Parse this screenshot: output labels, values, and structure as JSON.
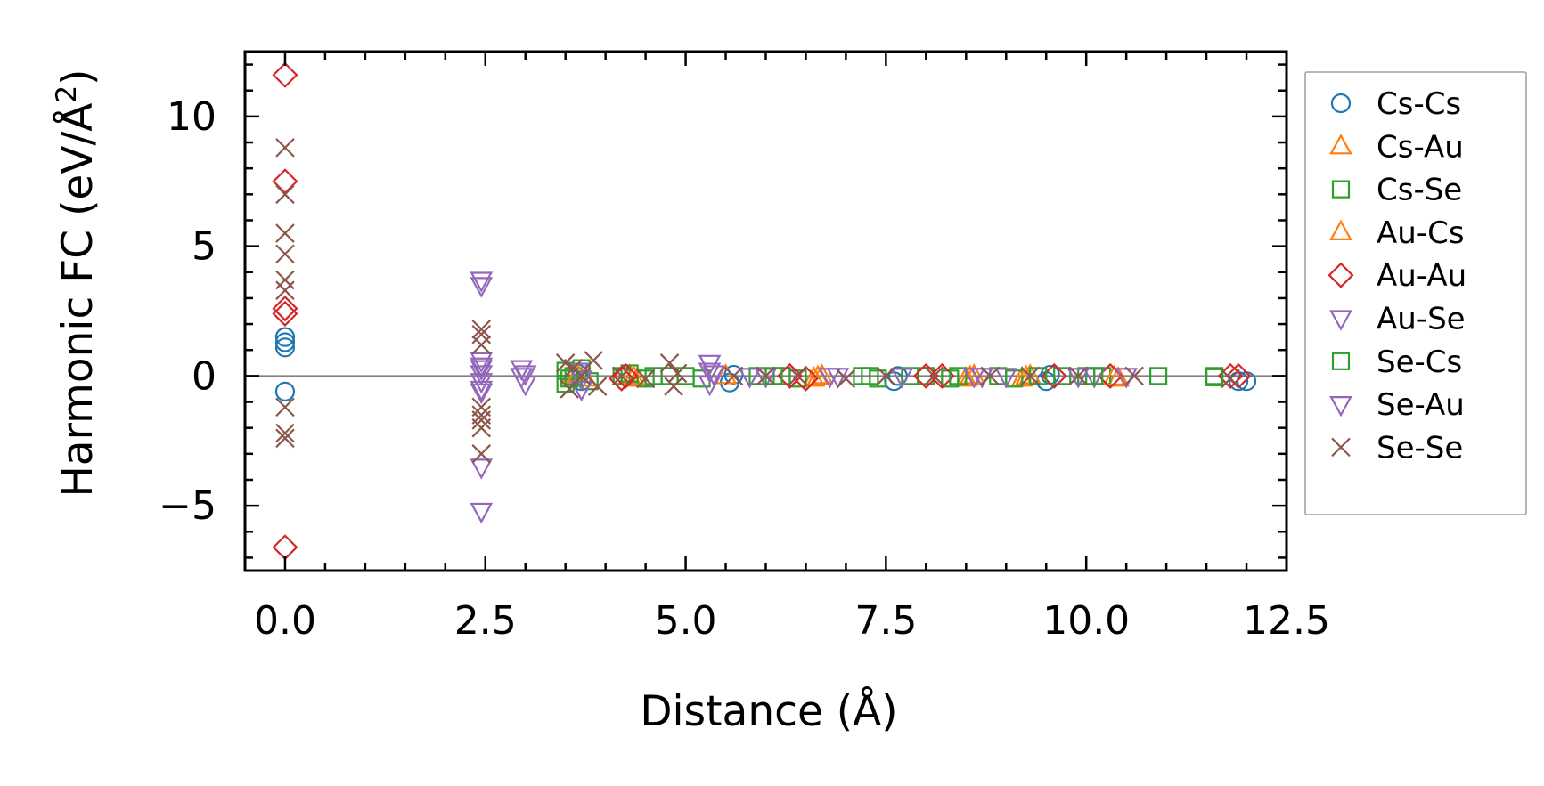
{
  "chart_data": {
    "type": "scatter",
    "xlabel": "Distance (Å)",
    "ylabel_main": "Harmonic FC (eV/Å",
    "ylabel_sup": "2",
    "ylabel_close": ")",
    "xlim": [
      -0.5,
      12.5
    ],
    "ylim": [
      -7.5,
      12.5
    ],
    "xticks": [
      0.0,
      2.5,
      5.0,
      7.5,
      10.0,
      12.5
    ],
    "xtick_labels": [
      "0.0",
      "2.5",
      "5.0",
      "7.5",
      "10.0",
      "12.5"
    ],
    "yticks": [
      -5,
      0,
      5,
      10
    ],
    "ytick_labels": [
      "−5",
      "0",
      "5",
      "10"
    ],
    "zero_line": true,
    "legend_position": "outside-right",
    "series": [
      {
        "name": "Cs-Cs",
        "marker": "circle",
        "color": "#1f77b4",
        "points": [
          [
            0,
            1.5
          ],
          [
            0,
            1.3
          ],
          [
            0,
            1.1
          ],
          [
            0,
            -0.6
          ],
          [
            3.65,
            0.1
          ],
          [
            3.7,
            -0.2
          ],
          [
            5.55,
            -0.25
          ],
          [
            5.6,
            0.05
          ],
          [
            7.6,
            -0.2
          ],
          [
            7.65,
            0.0
          ],
          [
            9.5,
            -0.2
          ],
          [
            9.55,
            0.05
          ],
          [
            11.9,
            -0.2
          ],
          [
            12.0,
            -0.2
          ]
        ]
      },
      {
        "name": "Cs-Au",
        "marker": "triangle-up",
        "color": "#ff7f0e",
        "points": [
          [
            3.6,
            0.1
          ],
          [
            3.75,
            -0.1
          ],
          [
            4.3,
            0.0
          ],
          [
            4.4,
            -0.1
          ],
          [
            5.5,
            0.0
          ],
          [
            6.6,
            -0.1
          ],
          [
            6.7,
            0.0
          ],
          [
            8.5,
            -0.1
          ],
          [
            8.6,
            0.0
          ],
          [
            9.2,
            -0.1
          ],
          [
            9.3,
            0.0
          ],
          [
            10.4,
            -0.1
          ]
        ]
      },
      {
        "name": "Cs-Se",
        "marker": "square",
        "color": "#2ca02c",
        "points": [
          [
            3.5,
            0.2
          ],
          [
            3.5,
            -0.3
          ],
          [
            3.6,
            0.0
          ],
          [
            3.7,
            0.3
          ],
          [
            3.8,
            -0.2
          ],
          [
            4.2,
            0.0
          ],
          [
            4.3,
            0.1
          ],
          [
            4.5,
            -0.1
          ],
          [
            4.8,
            0.0
          ],
          [
            5.0,
            0.0
          ],
          [
            5.2,
            -0.1
          ],
          [
            5.9,
            0.0
          ],
          [
            6.2,
            0.0
          ],
          [
            6.4,
            -0.1
          ],
          [
            7.2,
            0.0
          ],
          [
            7.4,
            -0.1
          ],
          [
            7.8,
            0.0
          ],
          [
            8.0,
            0.0
          ],
          [
            8.3,
            -0.1
          ],
          [
            8.9,
            0.0
          ],
          [
            9.1,
            -0.1
          ],
          [
            9.7,
            0.0
          ],
          [
            10.0,
            0.0
          ],
          [
            10.2,
            0.0
          ],
          [
            10.9,
            0.0
          ],
          [
            11.6,
            0.0
          ]
        ]
      },
      {
        "name": "Au-Cs",
        "marker": "triangle-up",
        "color": "#ff7f0e",
        "points": [
          [
            3.65,
            0.05
          ],
          [
            4.35,
            -0.05
          ],
          [
            6.65,
            -0.05
          ],
          [
            8.55,
            -0.05
          ],
          [
            9.25,
            -0.05
          ],
          [
            10.35,
            -0.05
          ]
        ]
      },
      {
        "name": "Au-Au",
        "marker": "diamond",
        "color": "#d62728",
        "points": [
          [
            0,
            11.6
          ],
          [
            0,
            7.5
          ],
          [
            0,
            2.6
          ],
          [
            0,
            2.4
          ],
          [
            0,
            -6.6
          ],
          [
            4.2,
            -0.1
          ],
          [
            4.25,
            0.0
          ],
          [
            6.3,
            0.0
          ],
          [
            6.5,
            -0.1
          ],
          [
            8.0,
            0.0
          ],
          [
            8.2,
            0.0
          ],
          [
            9.6,
            0.0
          ],
          [
            10.3,
            0.0
          ],
          [
            11.8,
            0.0
          ],
          [
            11.9,
            0.0
          ]
        ]
      },
      {
        "name": "Au-Se",
        "marker": "triangle-down",
        "color": "#9467bd",
        "points": [
          [
            2.45,
            3.7
          ],
          [
            2.45,
            3.5
          ],
          [
            2.45,
            0.6
          ],
          [
            2.45,
            0.4
          ],
          [
            2.45,
            0.1
          ],
          [
            2.45,
            -0.2
          ],
          [
            2.45,
            -0.5
          ],
          [
            2.45,
            -3.5
          ],
          [
            2.45,
            -5.2
          ],
          [
            2.95,
            0.3
          ],
          [
            3.0,
            -0.3
          ],
          [
            3.0,
            0.1
          ],
          [
            3.7,
            -0.1
          ],
          [
            3.7,
            -0.5
          ],
          [
            5.3,
            0.5
          ],
          [
            5.3,
            -0.3
          ],
          [
            5.35,
            0.1
          ],
          [
            6.0,
            0.0
          ],
          [
            6.9,
            0.0
          ],
          [
            7.7,
            0.0
          ],
          [
            8.7,
            0.0
          ],
          [
            9.0,
            0.0
          ],
          [
            10.1,
            0.0
          ],
          [
            10.5,
            0.0
          ]
        ]
      },
      {
        "name": "Se-Cs",
        "marker": "square",
        "color": "#2ca02c",
        "points": [
          [
            3.55,
            -0.1
          ],
          [
            4.6,
            0.0
          ],
          [
            6.1,
            0.0
          ],
          [
            7.3,
            0.0
          ],
          [
            8.4,
            0.0
          ],
          [
            9.4,
            0.0
          ],
          [
            10.1,
            0.0
          ],
          [
            11.6,
            -0.05
          ]
        ]
      },
      {
        "name": "Se-Au",
        "marker": "triangle-down",
        "color": "#9467bd",
        "points": [
          [
            2.45,
            0.3
          ],
          [
            2.45,
            -0.6
          ],
          [
            2.95,
            0.0
          ],
          [
            3.65,
            0.2
          ],
          [
            5.3,
            0.2
          ],
          [
            5.8,
            0.0
          ],
          [
            6.8,
            0.0
          ],
          [
            8.6,
            0.0
          ],
          [
            9.9,
            0.0
          ]
        ]
      },
      {
        "name": "Se-Se",
        "marker": "x",
        "color": "#8c564b",
        "points": [
          [
            0,
            8.8
          ],
          [
            0,
            7.0
          ],
          [
            0,
            5.5
          ],
          [
            0,
            4.7
          ],
          [
            0,
            3.7
          ],
          [
            0,
            3.3
          ],
          [
            0,
            -1.2
          ],
          [
            0,
            -2.2
          ],
          [
            0,
            -2.4
          ],
          [
            2.45,
            1.8
          ],
          [
            2.45,
            1.6
          ],
          [
            2.45,
            1.2
          ],
          [
            2.45,
            -1.2
          ],
          [
            2.45,
            -1.5
          ],
          [
            2.45,
            -1.7
          ],
          [
            2.45,
            -2.0
          ],
          [
            2.45,
            -3.0
          ],
          [
            3.5,
            0.5
          ],
          [
            3.55,
            -0.5
          ],
          [
            3.6,
            0.3
          ],
          [
            3.7,
            0.0
          ],
          [
            3.85,
            0.6
          ],
          [
            3.9,
            -0.4
          ],
          [
            4.2,
            0.0
          ],
          [
            4.5,
            -0.1
          ],
          [
            4.8,
            0.5
          ],
          [
            4.85,
            -0.4
          ],
          [
            4.9,
            0.1
          ],
          [
            5.6,
            0.0
          ],
          [
            6.0,
            0.0
          ],
          [
            6.4,
            0.0
          ],
          [
            7.0,
            -0.1
          ],
          [
            7.5,
            0.0
          ],
          [
            8.1,
            0.0
          ],
          [
            8.8,
            0.0
          ],
          [
            9.3,
            0.0
          ],
          [
            9.9,
            0.0
          ],
          [
            10.6,
            0.0
          ],
          [
            11.8,
            -0.1
          ]
        ]
      }
    ]
  }
}
